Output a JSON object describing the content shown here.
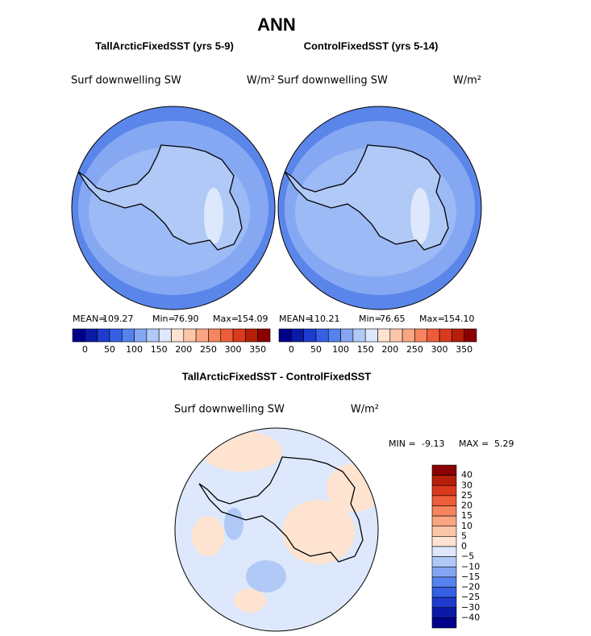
{
  "header": {
    "title": "ANN"
  },
  "panels": [
    {
      "title": "TallArcticFixedSST (yrs 5-9)",
      "variable": "Surf downwelling SW",
      "units": "W/m²",
      "stats": {
        "mean_label": "MEAN=",
        "mean": "109.27",
        "min_label": "Min=",
        "min": "76.90",
        "max_label": "Max=",
        "max": "154.09"
      }
    },
    {
      "title": "ControlFixedSST (yrs 5-14)",
      "variable": "Surf downwelling SW",
      "units": "W/m²",
      "stats": {
        "mean_label": "MEAN=",
        "mean": "110.21",
        "min_label": "Min=",
        "min": "76.65",
        "max_label": "Max=",
        "max": "154.10"
      }
    }
  ],
  "main_colorbar": {
    "labels": [
      "0",
      "50",
      "100",
      "150",
      "200",
      "250",
      "300",
      "350"
    ],
    "colors": [
      "#00008b",
      "#0a1aa6",
      "#1d3bcc",
      "#3560e4",
      "#5582ec",
      "#84a6f2",
      "#b1c9f7",
      "#dde8fc",
      "#fde3d0",
      "#fcc6a8",
      "#fba683",
      "#f6845f",
      "#ee5d39",
      "#d9391d",
      "#b51f0a",
      "#8b0000"
    ]
  },
  "difference": {
    "title": "TallArcticFixedSST - ControlFixedSST",
    "variable": "Surf downwelling SW",
    "units": "W/m²",
    "stats": {
      "min_label": "MIN =",
      "min": "-9.13",
      "max_label": "MAX =",
      "max": "5.29"
    },
    "colorbar": {
      "labels": [
        "40",
        "30",
        "25",
        "20",
        "15",
        "10",
        "5",
        "0",
        "−5",
        "−10",
        "−15",
        "−20",
        "−25",
        "−30",
        "−40"
      ],
      "colors": [
        "#8b0000",
        "#b51f0a",
        "#d9391d",
        "#ee5d39",
        "#f6845f",
        "#fba683",
        "#fcc6a8",
        "#fde3d0",
        "#dde8fc",
        "#b1c9f7",
        "#84a6f2",
        "#5582ec",
        "#3560e4",
        "#1d3bcc",
        "#0a1aa6",
        "#00008b"
      ]
    }
  }
}
